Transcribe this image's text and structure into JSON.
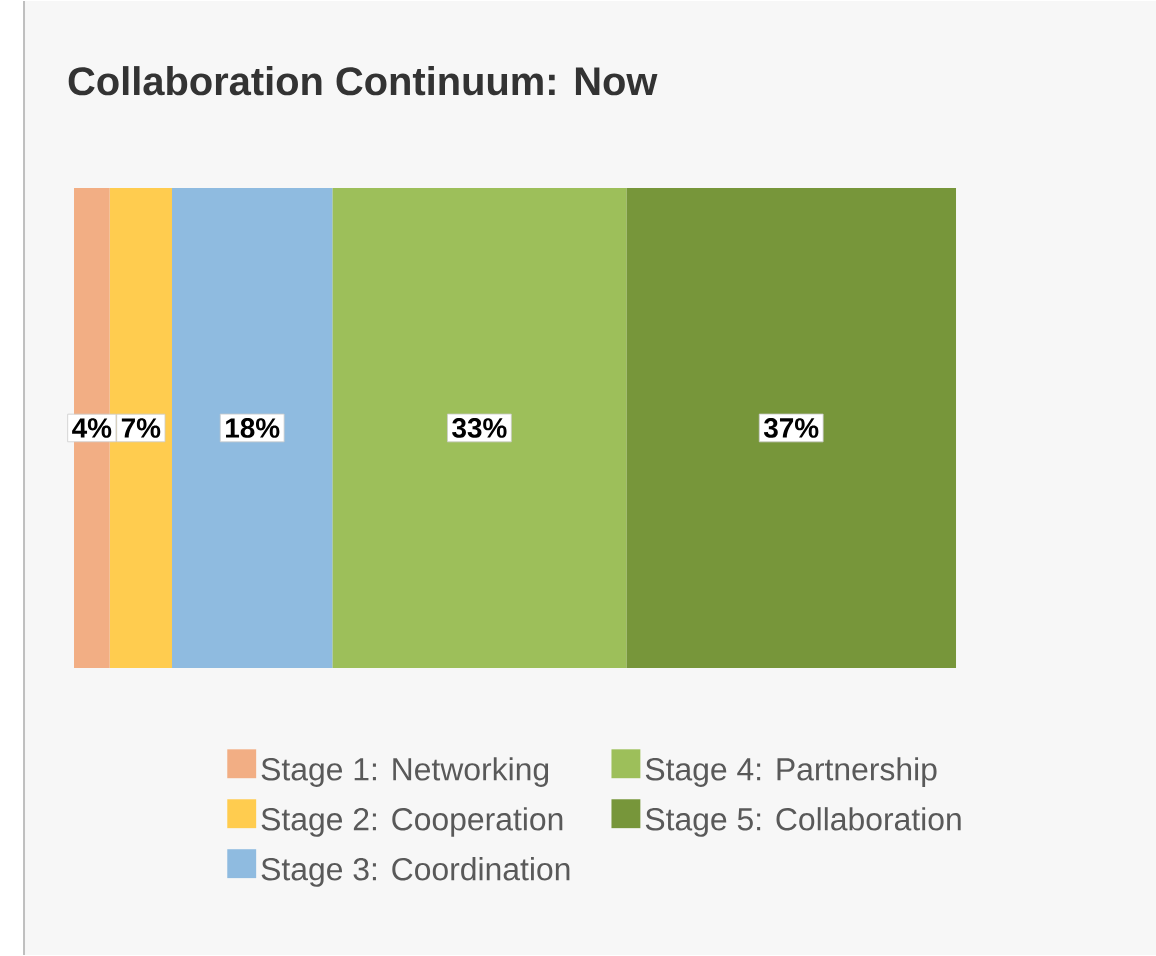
{
  "chart_data": {
    "type": "bar",
    "title": "Collaboration Continuum: Now",
    "orientation": "horizontal",
    "stacked": true,
    "categories": [
      null
    ],
    "legend": "bottom",
    "series": [
      {
        "name": "Stage 1: Networking",
        "color": "#f2ae84",
        "values": [
          4
        ],
        "value_labels": [
          "4%"
        ]
      },
      {
        "name": "Stage 2: Cooperation",
        "color": "#ffcc4f",
        "values": [
          7
        ],
        "value_labels": [
          "7%"
        ]
      },
      {
        "name": "Stage 3: Coordination",
        "color": "#8fbbe0",
        "values": [
          18
        ],
        "value_labels": [
          "18%"
        ]
      },
      {
        "name": "Stage 4: Partnership",
        "color": "#9dbf5a",
        "values": [
          33
        ],
        "value_labels": [
          "33%"
        ]
      },
      {
        "name": "Stage 5: Collaboration",
        "color": "#77963a",
        "values": [
          37
        ],
        "value_labels": [
          "37%"
        ]
      }
    ]
  }
}
